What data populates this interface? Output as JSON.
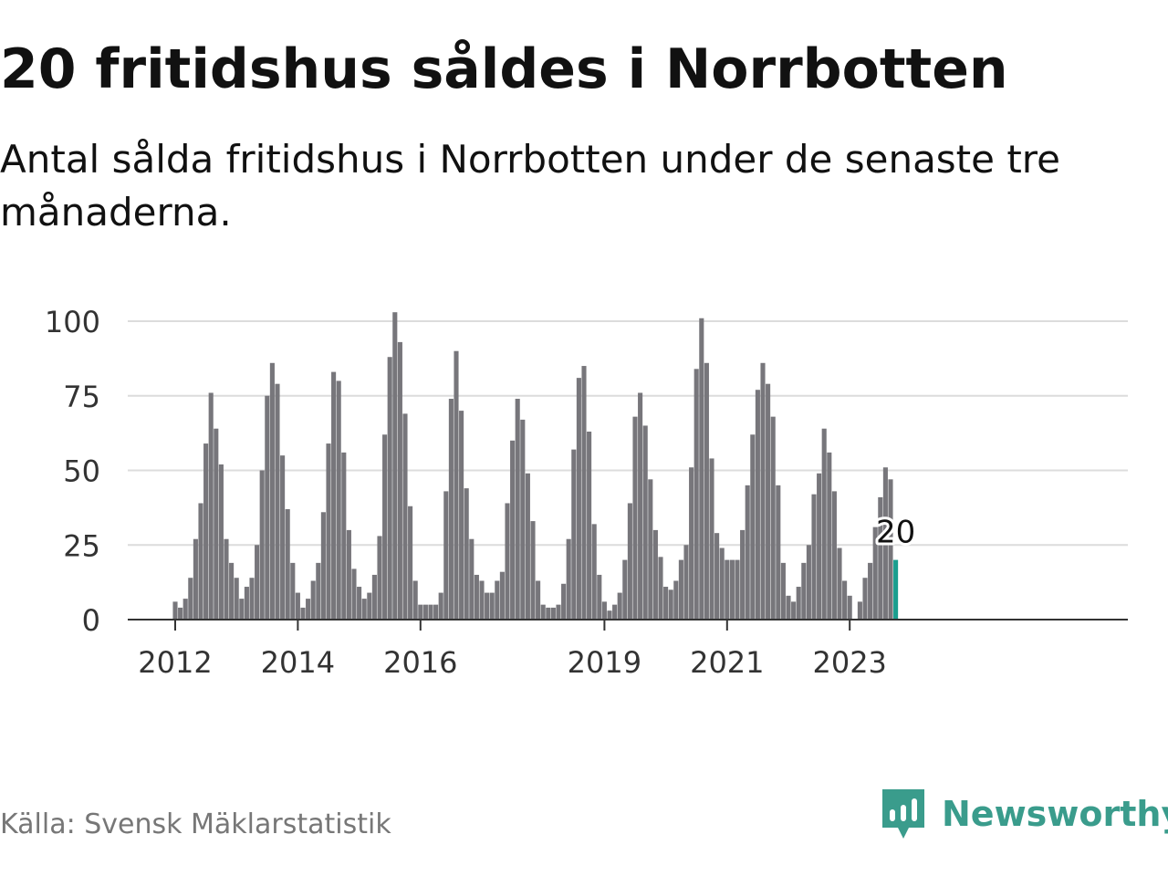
{
  "title": "20 fritidshus såldes i Norrbotten",
  "subtitle": "Antal sålda fritidshus i Norrbotten under de senaste tre månaderna.",
  "source": "Källa: Svensk Mäklarstatistik",
  "brand": {
    "name": "Newsworthy",
    "icon": "newsworthy-logo-icon"
  },
  "colors": {
    "bar": "#77767b",
    "highlight": "#1a9e8e",
    "grid": "#dcdcdc",
    "axis": "#333333",
    "brand": "#3a9c8c"
  },
  "chart_data": {
    "type": "bar",
    "title": "20 fritidshus såldes i Norrbotten",
    "subtitle": "Antal sålda fritidshus i Norrbotten under de senaste tre månaderna.",
    "xlabel": "",
    "ylabel": "",
    "ylim": [
      0,
      100
    ],
    "yticks": [
      0,
      25,
      50,
      75,
      100
    ],
    "xticks": [
      {
        "label": "2012",
        "index": 0
      },
      {
        "label": "2014",
        "index": 24
      },
      {
        "label": "2016",
        "index": 48
      },
      {
        "label": "2019",
        "index": 84
      },
      {
        "label": "2021",
        "index": 108
      },
      {
        "label": "2023",
        "index": 132
      }
    ],
    "grid": true,
    "legend": "none",
    "series_start": "2012-01",
    "frequency": "monthly",
    "values": [
      6,
      4,
      7,
      14,
      27,
      39,
      59,
      76,
      64,
      52,
      27,
      19,
      14,
      7,
      11,
      14,
      25,
      50,
      75,
      86,
      79,
      55,
      37,
      19,
      9,
      4,
      7,
      13,
      19,
      36,
      59,
      83,
      80,
      56,
      30,
      17,
      11,
      7,
      9,
      15,
      28,
      62,
      88,
      103,
      93,
      69,
      38,
      13,
      5,
      5,
      5,
      5,
      9,
      43,
      74,
      90,
      70,
      44,
      27,
      15,
      13,
      9,
      9,
      13,
      16,
      39,
      60,
      74,
      67,
      49,
      33,
      13,
      5,
      4,
      4,
      5,
      12,
      27,
      57,
      81,
      85,
      63,
      32,
      15,
      6,
      3,
      5,
      9,
      20,
      39,
      68,
      76,
      65,
      47,
      30,
      21,
      11,
      10,
      13,
      20,
      25,
      51,
      84,
      101,
      86,
      54,
      29,
      24,
      20,
      20,
      20,
      30,
      45,
      62,
      77,
      86,
      79,
      68,
      45,
      19,
      8,
      6,
      11,
      19,
      25,
      42,
      49,
      64,
      56,
      43,
      24,
      13,
      8,
      0,
      6,
      14,
      19,
      31,
      41,
      51,
      47,
      20
    ],
    "highlight_index": 141,
    "highlight_label": "20"
  }
}
